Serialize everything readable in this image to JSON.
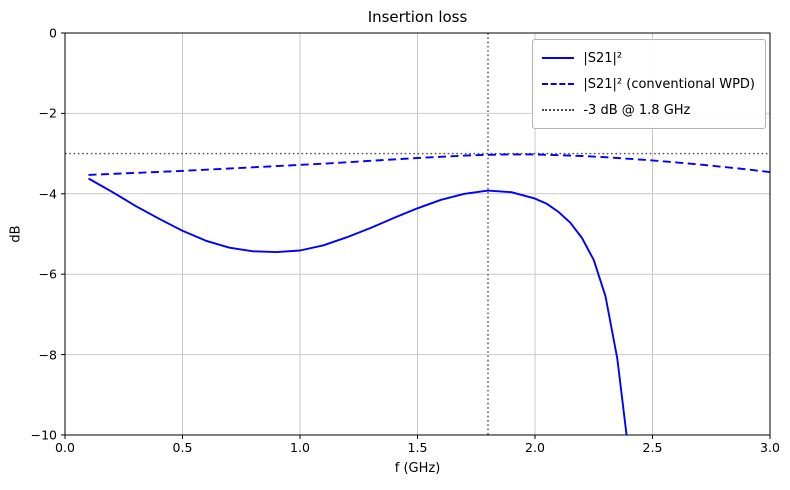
{
  "colors": {
    "series_blue": "#0000ff",
    "reference": "#4d4d4d",
    "grid": "#c9c9c9",
    "axis": "#000000",
    "legend_border": "#b3b3b3"
  },
  "chart_data": {
    "type": "line",
    "title": "Insertion loss",
    "xlabel": "f (GHz)",
    "ylabel": "dB",
    "xlim": [
      0.0,
      3.0
    ],
    "ylim": [
      -10,
      0
    ],
    "grid": true,
    "legend_position": "upper right",
    "x_ticks": {
      "values": [
        0.0,
        0.5,
        1.0,
        1.5,
        2.0,
        2.5,
        3.0
      ],
      "labels": [
        "0.0",
        "0.5",
        "1.0",
        "1.5",
        "2.0",
        "2.5",
        "3.0"
      ]
    },
    "y_ticks": {
      "values": [
        0,
        -2,
        -4,
        -6,
        -8,
        -10
      ],
      "labels": [
        "0",
        "−2",
        "−4",
        "−6",
        "−8",
        "−10"
      ]
    },
    "series": [
      {
        "name": "s21-proposed",
        "label": "|S21|²",
        "color": "#0000ff",
        "style": "solid",
        "x": [
          0.1,
          0.2,
          0.3,
          0.4,
          0.5,
          0.6,
          0.7,
          0.8,
          0.9,
          1.0,
          1.1,
          1.2,
          1.3,
          1.4,
          1.5,
          1.6,
          1.7,
          1.8,
          1.9,
          2.0,
          2.05,
          2.1,
          2.15,
          2.2,
          2.25,
          2.3,
          2.35,
          2.4
        ],
        "y": [
          -3.62,
          -3.95,
          -4.3,
          -4.62,
          -4.92,
          -5.17,
          -5.34,
          -5.43,
          -5.45,
          -5.41,
          -5.28,
          -5.08,
          -4.85,
          -4.6,
          -4.36,
          -4.15,
          -4.0,
          -3.92,
          -3.96,
          -4.12,
          -4.25,
          -4.45,
          -4.72,
          -5.1,
          -5.65,
          -6.55,
          -8.1,
          -10.5
        ]
      },
      {
        "name": "s21-conventional-wpd",
        "label": "|S21|² (conventional WPD)",
        "color": "#0000ff",
        "style": "dashed",
        "x": [
          0.1,
          0.3,
          0.5,
          0.7,
          0.9,
          1.1,
          1.3,
          1.5,
          1.7,
          1.8,
          1.9,
          2.0,
          2.1,
          2.2,
          2.3,
          2.4,
          2.5,
          2.6,
          2.7,
          2.8,
          2.9,
          3.0
        ],
        "y": [
          -3.53,
          -3.48,
          -3.43,
          -3.37,
          -3.31,
          -3.25,
          -3.18,
          -3.11,
          -3.05,
          -3.03,
          -3.02,
          -3.02,
          -3.04,
          -3.06,
          -3.09,
          -3.13,
          -3.17,
          -3.22,
          -3.27,
          -3.33,
          -3.39,
          -3.46
        ]
      }
    ],
    "reference_lines": [
      {
        "name": "hline-minus-3db",
        "orientation": "horizontal",
        "value": -3,
        "style": "dotted",
        "color": "#4d4d4d"
      },
      {
        "name": "vline-1p8ghz",
        "orientation": "vertical",
        "value": 1.8,
        "style": "dotted",
        "color": "#4d4d4d"
      }
    ],
    "legend": [
      {
        "label": "|S21|²",
        "style": "solid",
        "color": "#0000ff"
      },
      {
        "label": "|S21|² (conventional WPD)",
        "style": "dashed",
        "color": "#0000ff"
      },
      {
        "label": "-3 dB @ 1.8 GHz",
        "style": "dotted",
        "color": "#4d4d4d"
      }
    ]
  }
}
